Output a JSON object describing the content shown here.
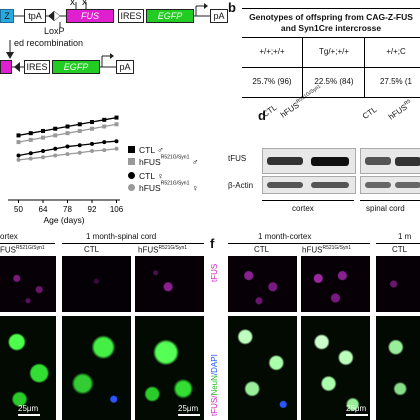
{
  "panel_a": {
    "construct1": {
      "left_box": "Z",
      "lp_box": "tpA",
      "fus": "FUS",
      "ires": "IRES",
      "egfp": "EGFP",
      "pa": "pA",
      "x_marks": [
        "x",
        "x"
      ]
    },
    "loxp_label": "LoxP",
    "recomb_label": "ed recombination",
    "construct2": {
      "ires": "IRES",
      "egfp": "EGFP",
      "pa": "pA"
    }
  },
  "panel_b": {
    "letter": "b",
    "title_line1": "Genotypes of offspring from CAG-Z-FUS",
    "title_line2": "and Syn1Cre intercrosse",
    "headers": [
      "+/+;+/+",
      "Tg/+;+/+",
      "+/+;C"
    ],
    "values": [
      "25.7% (96)",
      "22.5% (84)",
      "27.5% (1"
    ]
  },
  "chart_data": {
    "type": "line",
    "xlabel": "Age (days)",
    "x": [
      50,
      57,
      64,
      71,
      78,
      85,
      92,
      99,
      106
    ],
    "xticks": [
      50,
      64,
      78,
      92,
      106
    ],
    "tick_labels": [
      "50",
      "64",
      "78",
      "92",
      "106"
    ],
    "series": [
      {
        "name": "CTL ♂",
        "color": "#000000",
        "marker": "square",
        "values": [
          24.5,
          25,
          25.5,
          26,
          26.5,
          27,
          27.5,
          28,
          28.5
        ]
      },
      {
        "name": "hFUS R521G/Syn1 ♂",
        "color": "#999999",
        "marker": "square",
        "values": [
          23,
          23.5,
          24,
          24.5,
          25,
          25.5,
          26,
          26.5,
          27
        ]
      },
      {
        "name": "CTL ♀",
        "color": "#000000",
        "marker": "circle",
        "values": [
          20,
          20.5,
          21,
          21.5,
          22,
          22.3,
          22.6,
          23,
          23.2
        ]
      },
      {
        "name": "hFUS R521G/Syn1 ♀",
        "color": "#999999",
        "marker": "circle",
        "values": [
          19,
          19.3,
          19.6,
          20,
          20.3,
          20.6,
          21,
          21.2,
          21.5
        ]
      }
    ],
    "legend": [
      {
        "base": "CTL ",
        "sup": "",
        "sym": "♂"
      },
      {
        "base": "hFUS",
        "sup": "R521G/Syn1",
        "sym": " ♂"
      },
      {
        "base": "CTL ",
        "sup": "",
        "sym": "♀"
      },
      {
        "base": "hFUS",
        "sup": "R521G/Syn1",
        "sym": " ♀"
      }
    ],
    "ylim": [
      10,
      32
    ]
  },
  "panel_d": {
    "letter": "d",
    "col_ctl": "CTL",
    "col_hfus": "hFUS",
    "col_hfus_sup": "R521G/Syn1",
    "col_ctl2": "CTL",
    "col_hfus2": "hFUS",
    "col_hfus2_sup": "R5",
    "row_tfus": "tFUS",
    "row_actin": "β-Actin",
    "tissue_cortex": "cortex",
    "tissue_spinal": "spinal cord"
  },
  "panel_e": {
    "title_cortex": "ortex",
    "title_spinal": "1 month-spinal cord",
    "col_hfus": "FUS",
    "col_hfus_sup": "R521G/Syn1",
    "col_ctl": "CTL",
    "col_hfus2": "hFUS",
    "col_hfus2_sup": "R521G/Syn1",
    "scale1": "25μm",
    "scale2": "25μm"
  },
  "panel_f": {
    "letter": "f",
    "title_cortex": "1 month-cortex",
    "title_right": "1 m",
    "col_ctl": "CTL",
    "col_hfus": "hFUS",
    "col_hfus_sup": "R521G/Syn1",
    "col_ctl2": "CTL",
    "row_tfus": "tFUS",
    "row_merge_a": "tFUS/",
    "row_merge_b": "NeuN",
    "row_merge_c": "/DAPI",
    "scale": "25μm"
  }
}
